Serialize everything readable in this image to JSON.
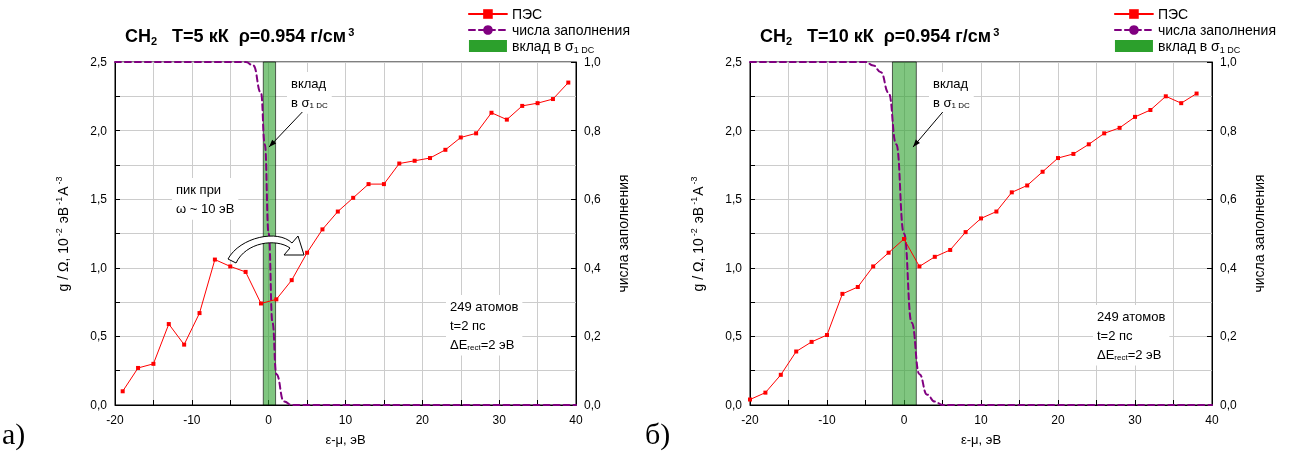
{
  "chart_data": [
    {
      "type": "line",
      "title": "CH$_{2}$   T=5 кК  ρ=0.954 г/см$^{3}$",
      "xlabel": "ε-μ, эВ",
      "ylabel": "g / Ω, 10$^{-2}$ эВ$^{-1}$A$^{-3}$",
      "y2label": "числа заполнения",
      "annotations": [
        "а)",
        {
          "text": "вклад\nв σ$_{1 DC}$",
          "x": 0,
          "y": 1.88
        },
        "пик при\nω ~ 10 эВ",
        "249 атомов\nt=2 пс\nΔE$_{rect}$=2 эВ"
      ],
      "series": [
        {
          "name": "ПЭС",
          "type": "line",
          "color": "#ff0000",
          "marker": "square",
          "line_style": "solid",
          "x": [
            -19,
            -17,
            -15,
            -13,
            -11,
            -9,
            -7,
            -5,
            -3,
            -1,
            1,
            3,
            5,
            7,
            9,
            11,
            13,
            15,
            17,
            19,
            21,
            23,
            25,
            27,
            29,
            31,
            33,
            35,
            37,
            39
          ],
          "values": [
            0.1,
            0.27,
            0.3,
            0.59,
            0.44,
            0.67,
            1.06,
            1.01,
            0.97,
            0.74,
            0.77,
            0.91,
            1.11,
            1.28,
            1.41,
            1.51,
            1.61,
            1.61,
            1.76,
            1.78,
            1.8,
            1.86,
            1.95,
            1.98,
            2.13,
            2.08,
            2.18,
            2.2,
            2.23,
            2.35
          ]
        },
        {
          "name": "числа заполнения",
          "type": "line",
          "axis": "y2",
          "color": "#800080",
          "marker": "none",
          "line_style": "dashed",
          "x": [
            -20,
            -3,
            -2,
            -1,
            -0.5,
            0,
            0.5,
            1,
            2,
            3,
            40
          ],
          "values": [
            1,
            1,
            0.99,
            0.91,
            0.76,
            0.5,
            0.24,
            0.09,
            0.01,
            0,
            0
          ]
        }
      ],
      "bands": [
        {
          "axis": "x",
          "from": -0.7,
          "to": 0.9,
          "label": "вклад в σ$_{1 DC}$",
          "color": "#2ca02c"
        }
      ],
      "xlim": [
        -20,
        40
      ],
      "xticks": [
        -20,
        {
          "value": -15,
          "label": null
        },
        -10,
        {
          "value": -5,
          "label": null
        },
        0,
        {
          "value": 5,
          "label": null
        },
        10,
        {
          "value": 15,
          "label": null
        },
        20,
        {
          "value": 25,
          "label": null
        },
        30,
        {
          "value": 35,
          "label": null
        },
        40
      ],
      "ylim": [
        0,
        2.5
      ],
      "yticks": [
        {
          "value": 0,
          "label": "0,0"
        },
        {
          "value": 0.25,
          "label": null
        },
        {
          "value": 0.5,
          "label": "0,5"
        },
        {
          "value": 0.75,
          "label": null
        },
        {
          "value": 1,
          "label": "1,0"
        },
        {
          "value": 1.25,
          "label": null
        },
        {
          "value": 1.5,
          "label": "1,5"
        },
        {
          "value": 1.75,
          "label": null
        },
        {
          "value": 2,
          "label": "2,0"
        },
        {
          "value": 2.25,
          "label": null
        },
        {
          "value": 2.5,
          "label": "2,5"
        }
      ],
      "y2lim": [
        0,
        1
      ],
      "y2ticks": [
        {
          "value": 0,
          "label": "0,0"
        },
        {
          "value": 0.2,
          "label": "0,2"
        },
        {
          "value": 0.4,
          "label": "0,4"
        },
        {
          "value": 0.6,
          "label": "0,6"
        },
        {
          "value": 0.8,
          "label": "0,8"
        },
        {
          "value": 1,
          "label": "1,0"
        }
      ],
      "grid": true,
      "legend": "top right"
    },
    {
      "type": "line",
      "title": "CH$_{2}$   T=10 кК  ρ=0.954 г/см$^{3}$",
      "xlabel": "ε-μ, эВ",
      "ylabel": "g / Ω, 10$^{-2}$ эВ$^{-1}$A$^{-3}$",
      "y2label": "числа заполнения",
      "annotations": [
        "б)",
        {
          "text": "вклад\nв σ$_{1 DC}$",
          "x": 1.2,
          "y": 1.88
        },
        "249 атомов\nt=2 пс\nΔE$_{rect}$=2 эВ"
      ],
      "series": [
        {
          "name": "ПЭС",
          "type": "line",
          "color": "#ff0000",
          "marker": "square",
          "line_style": "solid",
          "x": [
            -20,
            -18,
            -16,
            -14,
            -12,
            -10,
            -8,
            -6,
            -4,
            -2,
            0,
            2,
            4,
            6,
            8,
            10,
            12,
            14,
            16,
            18,
            20,
            22,
            24,
            26,
            28,
            30,
            32,
            34,
            36,
            38
          ],
          "values": [
            0.04,
            0.09,
            0.22,
            0.39,
            0.46,
            0.51,
            0.81,
            0.86,
            1.01,
            1.11,
            1.21,
            1.01,
            1.08,
            1.13,
            1.26,
            1.36,
            1.41,
            1.55,
            1.6,
            1.7,
            1.8,
            1.83,
            1.9,
            1.98,
            2.02,
            2.1,
            2.15,
            2.25,
            2.2,
            2.27
          ]
        },
        {
          "name": "числа заполнения",
          "type": "line",
          "axis": "y2",
          "color": "#800080",
          "marker": "none",
          "line_style": "dashed",
          "x": [
            -20,
            -5,
            -4,
            -3,
            -2,
            -1,
            0,
            1,
            2,
            3,
            4,
            5,
            40
          ],
          "values": [
            1,
            1,
            0.99,
            0.97,
            0.91,
            0.76,
            0.5,
            0.24,
            0.09,
            0.03,
            0.01,
            0,
            0
          ]
        }
      ],
      "bands": [
        {
          "axis": "x",
          "from": -1.5,
          "to": 1.6,
          "label": "вклад в σ$_{1 DC}$",
          "color": "#2ca02c"
        }
      ],
      "xlim": [
        -20,
        40
      ],
      "xticks": [
        -20,
        {
          "value": -15,
          "label": null
        },
        -10,
        {
          "value": -5,
          "label": null
        },
        0,
        {
          "value": 5,
          "label": null
        },
        10,
        {
          "value": 15,
          "label": null
        },
        20,
        {
          "value": 25,
          "label": null
        },
        30,
        {
          "value": 35,
          "label": null
        },
        40
      ],
      "ylim": [
        0,
        2.5
      ],
      "yticks": [
        {
          "value": 0,
          "label": "0,0"
        },
        {
          "value": 0.25,
          "label": null
        },
        {
          "value": 0.5,
          "label": "0,5"
        },
        {
          "value": 0.75,
          "label": null
        },
        {
          "value": 1,
          "label": "1,0"
        },
        {
          "value": 1.25,
          "label": null
        },
        {
          "value": 1.5,
          "label": "1,5"
        },
        {
          "value": 1.75,
          "label": null
        },
        {
          "value": 2,
          "label": "2,0"
        },
        {
          "value": 2.25,
          "label": null
        },
        {
          "value": 2.5,
          "label": "2,5"
        }
      ],
      "y2lim": [
        0,
        1
      ],
      "y2ticks": [
        {
          "value": 0,
          "label": "0,0"
        },
        {
          "value": 0.2,
          "label": "0,2"
        },
        {
          "value": 0.4,
          "label": "0,4"
        },
        {
          "value": 0.6,
          "label": "0,6"
        },
        {
          "value": 0.8,
          "label": "0,8"
        },
        {
          "value": 1,
          "label": "1,0"
        }
      ],
      "grid": true,
      "legend": "top right"
    }
  ]
}
